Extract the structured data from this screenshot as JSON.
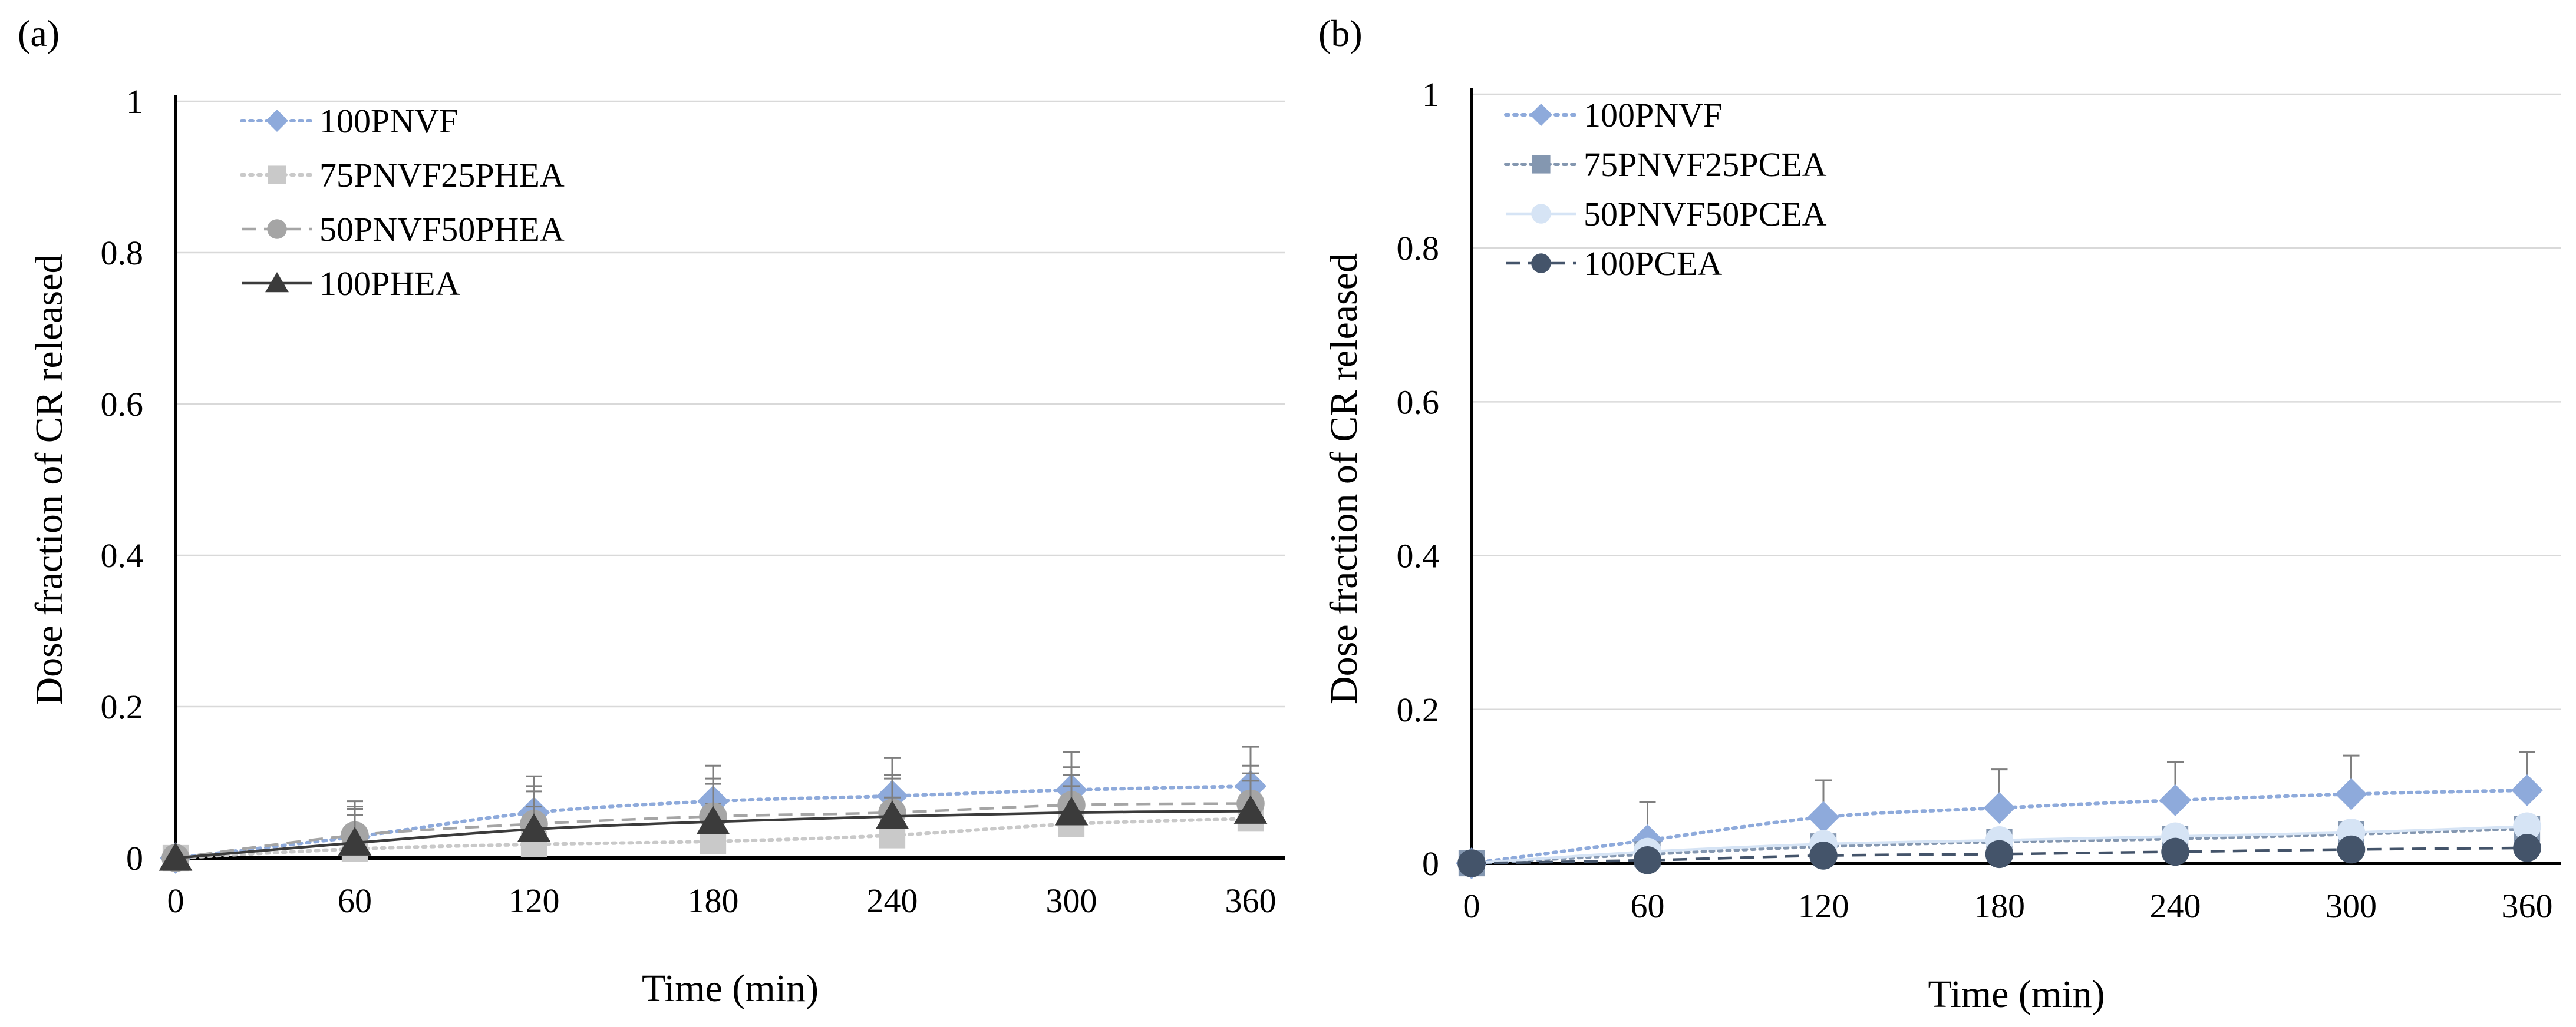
{
  "chart_data": [
    {
      "panel_label": "(a)",
      "type": "line",
      "xlabel": "Time (min)",
      "ylabel": "Dose fraction of CR released",
      "x": [
        0,
        60,
        120,
        180,
        240,
        300,
        360
      ],
      "x_tick_labels": [
        "0",
        "60",
        "120",
        "180",
        "240",
        "300",
        "360"
      ],
      "ylim": [
        0,
        1
      ],
      "y_ticks": [
        0,
        0.2,
        0.4,
        0.6,
        0.8,
        1
      ],
      "y_tick_labels": [
        "0",
        "0.2",
        "0.4",
        "0.6",
        "0.8",
        "1"
      ],
      "grid": "horizontal",
      "legend_position": "top-left",
      "series": [
        {
          "name": "100PNVF",
          "color": "#8eaadb",
          "marker": "diamond",
          "line": "dotted",
          "values": [
            0,
            0.028,
            0.06,
            0.075,
            0.082,
            0.09,
            0.095
          ],
          "errors": [
            0,
            0.04,
            0.048,
            0.047,
            0.05,
            0.05,
            0.052
          ]
        },
        {
          "name": "75PNVF25PHEA",
          "color": "#c9c9c9",
          "marker": "square",
          "line": "dotted",
          "values": [
            0,
            0.012,
            0.018,
            0.022,
            0.03,
            0.045,
            0.052
          ],
          "errors": [
            0,
            0.045,
            0.05,
            0.05,
            0.05,
            0.05,
            0.05
          ]
        },
        {
          "name": "50PNVF50PHEA",
          "color": "#a5a5a5",
          "marker": "circle",
          "line": "dashed",
          "values": [
            0,
            0.03,
            0.045,
            0.055,
            0.06,
            0.07,
            0.072
          ],
          "errors": [
            0,
            0.045,
            0.05,
            0.05,
            0.05,
            0.05,
            0.05
          ]
        },
        {
          "name": "100PHEA",
          "color": "#3b3b3b",
          "marker": "triangle",
          "line": "solid",
          "values": [
            0,
            0.02,
            0.038,
            0.048,
            0.055,
            0.06,
            0.062
          ],
          "errors": [
            0,
            0.045,
            0.05,
            0.05,
            0.05,
            0.05,
            0.05
          ]
        }
      ]
    },
    {
      "panel_label": "(b)",
      "type": "line",
      "xlabel": "Time (min)",
      "ylabel": "Dose fraction of CR released",
      "x": [
        0,
        60,
        120,
        180,
        240,
        300,
        360
      ],
      "x_tick_labels": [
        "0",
        "60",
        "120",
        "180",
        "240",
        "300",
        "360"
      ],
      "ylim": [
        0,
        1
      ],
      "y_ticks": [
        0,
        0.2,
        0.4,
        0.6,
        0.8,
        1
      ],
      "y_tick_labels": [
        "0",
        "0.2",
        "0.4",
        "0.6",
        "0.8",
        "1"
      ],
      "grid": "horizontal",
      "legend_position": "top-left",
      "series": [
        {
          "name": "100PNVF",
          "color": "#8eaadb",
          "marker": "diamond",
          "line": "dotted",
          "values": [
            0,
            0.03,
            0.06,
            0.072,
            0.082,
            0.09,
            0.095
          ],
          "errors": [
            0,
            0.05,
            0.048,
            0.05,
            0.05,
            0.05,
            0.05
          ]
        },
        {
          "name": "75PNVF25PCEA",
          "color": "#8497b0",
          "marker": "square",
          "line": "dotted",
          "values": [
            0,
            0.012,
            0.022,
            0.028,
            0.032,
            0.038,
            0.045
          ],
          "errors": [
            0,
            0.01,
            0.01,
            0.01,
            0.01,
            0.01,
            0.01
          ]
        },
        {
          "name": "50PNVF50PCEA",
          "color": "#d6e4f5",
          "marker": "circle",
          "line": "solid",
          "values": [
            0,
            0.015,
            0.025,
            0.03,
            0.035,
            0.04,
            0.048
          ],
          "errors": [
            0,
            0.01,
            0.01,
            0.01,
            0.01,
            0.01,
            0.01
          ]
        },
        {
          "name": "100PCEA",
          "color": "#44546a",
          "marker": "circle",
          "line": "dashed",
          "values": [
            0,
            0.004,
            0.01,
            0.012,
            0.015,
            0.018,
            0.02
          ],
          "errors": [
            0,
            0.005,
            0.005,
            0.005,
            0.005,
            0.005,
            0.005
          ]
        }
      ]
    }
  ]
}
